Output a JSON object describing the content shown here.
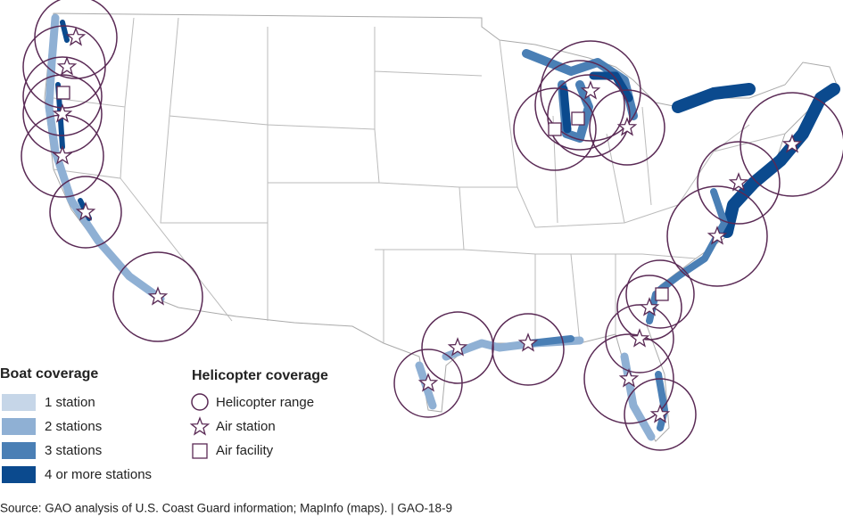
{
  "boat_legend": {
    "title": "Boat coverage",
    "items": [
      "1 station",
      "2 stations",
      "3 stations",
      "4 or more stations"
    ]
  },
  "helicopter_legend": {
    "title": "Helicopter coverage",
    "items": [
      "Helicopter range",
      "Air station",
      "Air facility"
    ]
  },
  "source": "Source: GAO analysis of U.S. Coast Guard information; MapInfo (maps).  |  GAO-18-9"
}
